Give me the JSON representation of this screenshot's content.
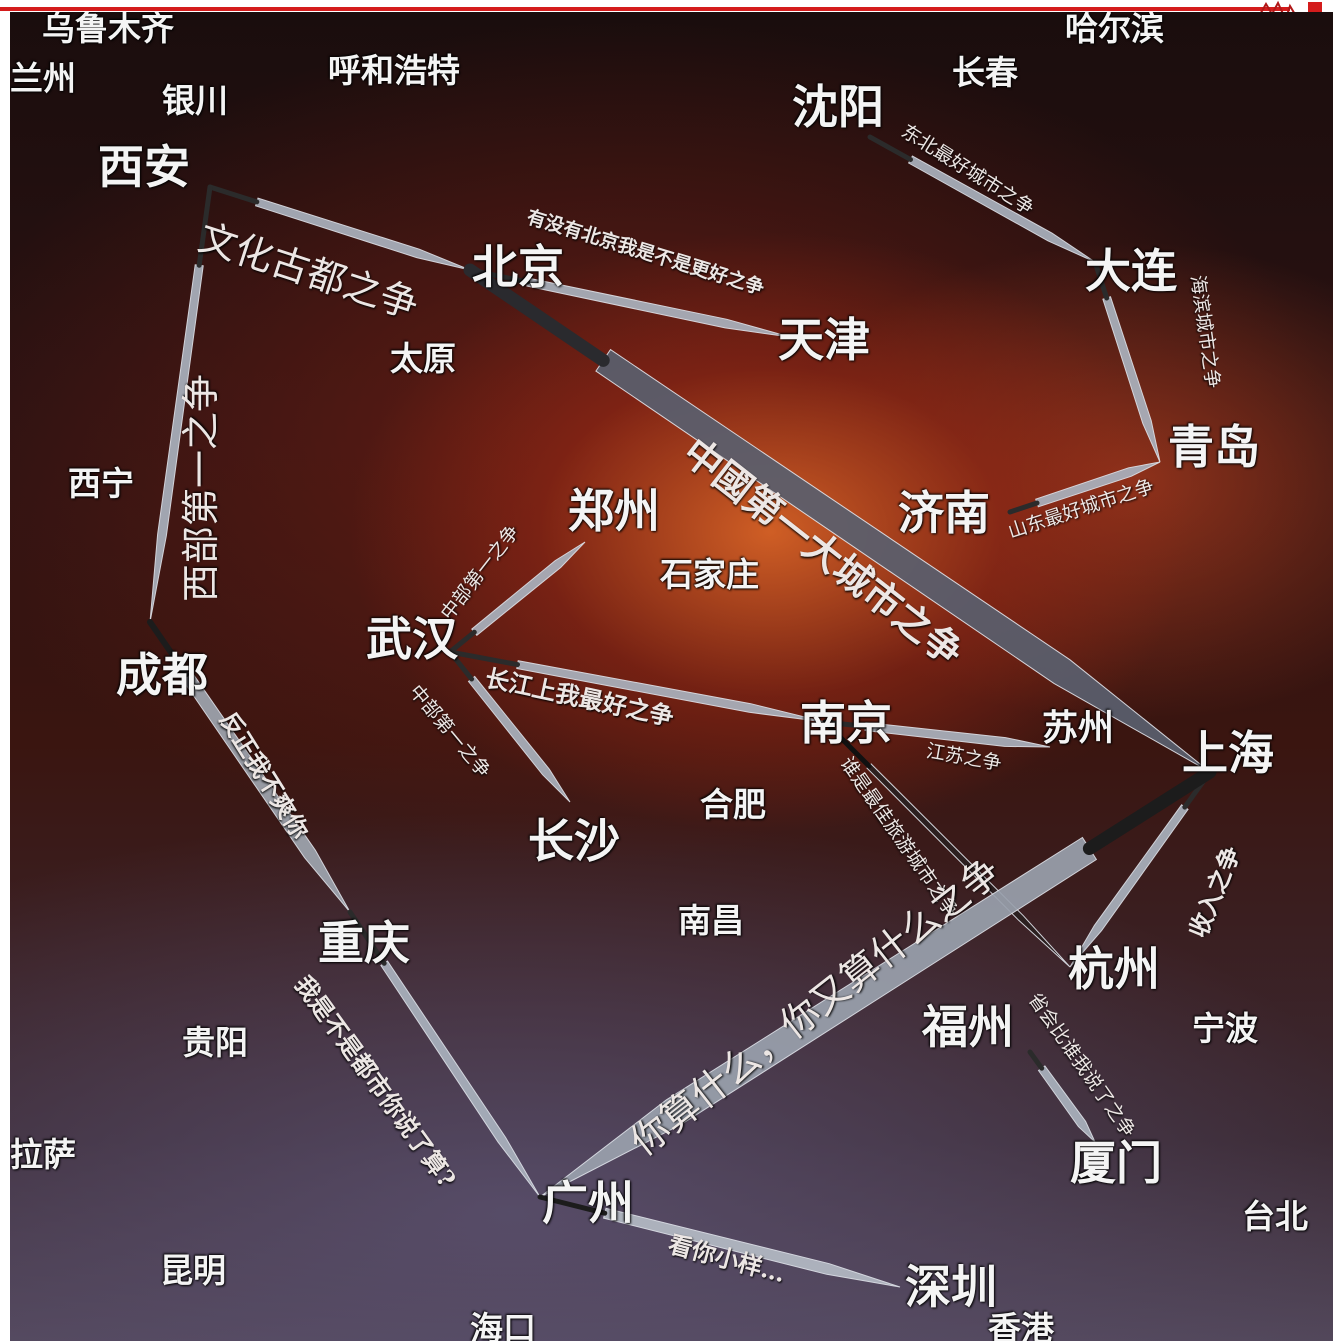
{
  "colors": {
    "brand_red": "#d41c1c",
    "label_white": "#f4f4f4",
    "background_dark": "#1a0d0d",
    "fire_orange": "#d66226"
  },
  "logo": {
    "icon": "red-seal-logo-icon"
  },
  "cities": {
    "urumqi": "乌鲁木齐",
    "lanzhou": "兰州",
    "yinchuan": "银川",
    "hohhot": "呼和浩特",
    "harbin": "哈尔滨",
    "changchun": "长春",
    "shenyang": "沈阳",
    "xian": "西安",
    "beijing": "北京",
    "tianjin": "天津",
    "dalian": "大连",
    "taiyuan": "太原",
    "qingdao": "青岛",
    "xining": "西宁",
    "jinan": "济南",
    "zhengzhou": "郑州",
    "shijiazhuang": "石家庄",
    "wuhan": "武汉",
    "chengdu": "成都",
    "nanjing": "南京",
    "suzhou": "苏州",
    "shanghai": "上海",
    "hefei": "合肥",
    "changsha": "长沙",
    "nanchang": "南昌",
    "chongqing": "重庆",
    "hangzhou": "杭州",
    "fuzhou": "福州",
    "ningbo": "宁波",
    "guiyang": "贵阳",
    "xiamen": "厦门",
    "lhasa": "拉萨",
    "guangzhou": "广州",
    "taipei": "台北",
    "kunming": "昆明",
    "shenzhen": "深圳",
    "haikou": "海口",
    "hongkong": "香港"
  },
  "rivalries": {
    "xian_beijing": "文化古都之争",
    "west": "西部第一之争",
    "northeast": "东北最好城市之争",
    "beijing_tianjin": "有没有北京我是不是更好之争",
    "dalian_qingdao": "海滨城市之争",
    "biggest_city": "中國第一大城市之争",
    "shandong": "山东最好城市之争",
    "central_zhengzhou": "中部第一之争",
    "yangtze": "长江上我最好之争",
    "central_changsha": "中部第一之争",
    "jiangsu": "江苏之争",
    "nanjing_hangzhou": "谁是最佳旅游城市之争",
    "income": "收入之争",
    "chengdu_chongqing": "反正我不爽你",
    "chongqing_guangzhou": "我是不是都市你说了算?",
    "sh_gz": "你算什么，你又算什么之争",
    "fuzhou_xiamen": "省会比谁我说了之争",
    "gz_sz": "看你小样…"
  },
  "weapons": [
    {
      "name": "xian-beijing-spear",
      "from": "xian",
      "to": "beijing"
    },
    {
      "name": "west-spear",
      "from": "xian",
      "to": "chengdu"
    },
    {
      "name": "shenyang-dalian-spear",
      "from": "shenyang",
      "to": "dalian"
    },
    {
      "name": "beijing-tianjin-spear",
      "from": "beijing",
      "to": "tianjin"
    },
    {
      "name": "dalian-qingdao-spear",
      "from": "dalian",
      "to": "qingdao"
    },
    {
      "name": "beijing-shanghai-sword",
      "from": "beijing",
      "to": "shanghai"
    },
    {
      "name": "jinan-qingdao-spear",
      "from": "jinan",
      "to": "qingdao"
    },
    {
      "name": "wuhan-zhengzhou-spear",
      "from": "wuhan",
      "to": "zhengzhou"
    },
    {
      "name": "wuhan-nanjing-spear",
      "from": "wuhan",
      "to": "nanjing"
    },
    {
      "name": "wuhan-changsha-axe",
      "from": "wuhan",
      "to": "changsha"
    },
    {
      "name": "nanjing-suzhou-spear",
      "from": "nanjing",
      "to": "suzhou"
    },
    {
      "name": "nanjing-hangzhou-halberd",
      "from": "nanjing",
      "to": "hangzhou"
    },
    {
      "name": "shanghai-hangzhou-spear",
      "from": "shanghai",
      "to": "hangzhou"
    },
    {
      "name": "chengdu-chongqing-sword",
      "from": "chengdu",
      "to": "chongqing"
    },
    {
      "name": "chongqing-guangzhou-spear",
      "from": "chongqing",
      "to": "guangzhou"
    },
    {
      "name": "shanghai-guangzhou-sword",
      "from": "shanghai",
      "to": "guangzhou"
    },
    {
      "name": "fuzhou-xiamen-spear",
      "from": "fuzhou",
      "to": "xiamen"
    },
    {
      "name": "guangzhou-shenzhen-sword",
      "from": "guangzhou",
      "to": "shenzhen"
    }
  ]
}
